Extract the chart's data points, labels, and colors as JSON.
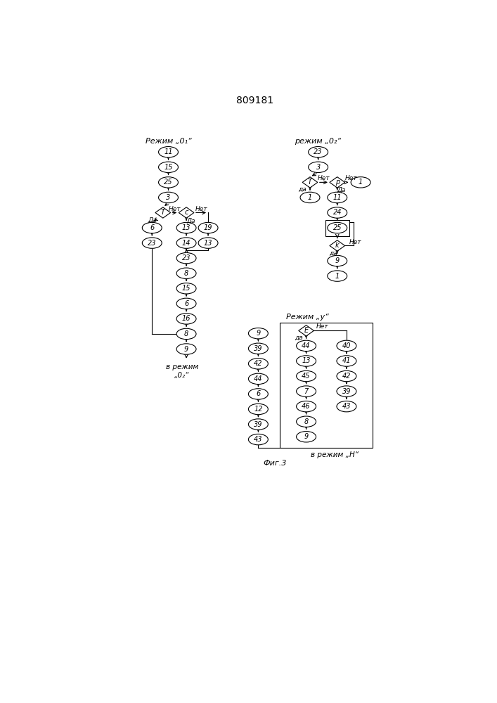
{
  "title": "809181",
  "fig3_label": "Фиг.3",
  "background_color": "#ffffff",
  "mode_o1_label": "Режим „0₁“",
  "mode_o2_label": "режим „0₂“",
  "mode_u_label": "Режим „у“",
  "end_o2_label": "в режим\n„0₂“",
  "end_h_label": "в режим „Н“"
}
